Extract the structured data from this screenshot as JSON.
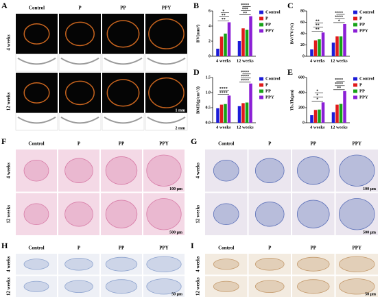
{
  "panels": {
    "A": {
      "label": "A",
      "columns": [
        "Control",
        "P",
        "PP",
        "PPY"
      ],
      "rows": [
        "4 weeks",
        "12 weeks"
      ],
      "scale_bars": [
        "1 mm",
        "2 mm"
      ]
    },
    "F": {
      "label": "F",
      "columns": [
        "Control",
        "P",
        "PP",
        "PPY"
      ],
      "rows": [
        "4 weeks",
        "12 weeks"
      ],
      "scale_bars": [
        "500 μm",
        "100 μm"
      ]
    },
    "G": {
      "label": "G",
      "columns": [
        "Control",
        "P",
        "PP",
        "PPY"
      ],
      "rows": [
        "4 weeks",
        "12 weeks"
      ],
      "scale_bars": [
        "500 μm",
        "100 μm"
      ]
    },
    "H": {
      "label": "H",
      "columns": [
        "Control",
        "P",
        "PP",
        "PPY"
      ],
      "rows": [
        "4 weeks",
        "12 weeks"
      ],
      "scale_bars": [
        "50 μm"
      ]
    },
    "I": {
      "label": "I",
      "columns": [
        "Control",
        "P",
        "PP",
        "PPY"
      ],
      "rows": [
        "4 weeks",
        "12 weeks"
      ],
      "scale_bars": [
        "50 μm"
      ]
    }
  },
  "chart_data": [
    {
      "type": "bar",
      "panel": "B",
      "ylabel": "BV(mm³)",
      "categories": [
        "4 weeks",
        "12 weeks"
      ],
      "series": [
        {
          "name": "Control",
          "color": "#1c1cd8",
          "values": [
            1.0,
            2.0
          ]
        },
        {
          "name": "P",
          "color": "#e01b1b",
          "values": [
            2.6,
            3.7
          ]
        },
        {
          "name": "PP",
          "color": "#17a317",
          "values": [
            3.0,
            3.5
          ]
        },
        {
          "name": "PPY",
          "color": "#8b1fd6",
          "values": [
            4.5,
            5.3
          ]
        }
      ],
      "annotations": [
        [
          "**",
          "**",
          "*"
        ],
        [
          "**",
          "***",
          "****"
        ]
      ],
      "ylim": [
        0,
        6
      ],
      "yticks": [
        0,
        2,
        4,
        6
      ]
    },
    {
      "type": "bar",
      "panel": "C",
      "ylabel": "BV/TV(%)",
      "categories": [
        "4 weeks",
        "12 weeks"
      ],
      "series": [
        {
          "name": "Control",
          "color": "#1c1cd8",
          "values": [
            12,
            24
          ]
        },
        {
          "name": "P",
          "color": "#e01b1b",
          "values": [
            28,
            35
          ]
        },
        {
          "name": "PP",
          "color": "#17a317",
          "values": [
            30,
            35
          ]
        },
        {
          "name": "PPY",
          "color": "#8b1fd6",
          "values": [
            42,
            57
          ]
        }
      ],
      "annotations": [
        [
          "**",
          "**",
          "**"
        ],
        [
          "*",
          "****",
          "****"
        ]
      ],
      "ylim": [
        0,
        80
      ],
      "yticks": [
        0,
        20,
        40,
        60,
        80
      ]
    },
    {
      "type": "bar",
      "panel": "D",
      "ylabel": "BMD(g/cm^3)",
      "categories": [
        "4 weeks",
        "12 weeks"
      ],
      "series": [
        {
          "name": "Control",
          "color": "#1c1cd8",
          "values": [
            0.48,
            0.55
          ]
        },
        {
          "name": "P",
          "color": "#e01b1b",
          "values": [
            0.6,
            0.65
          ]
        },
        {
          "name": "PP",
          "color": "#17a317",
          "values": [
            0.62,
            0.67
          ]
        },
        {
          "name": "PPY",
          "color": "#8b1fd6",
          "values": [
            0.9,
            1.3
          ]
        }
      ],
      "annotations": [
        [
          "****",
          "****"
        ],
        [
          "****",
          "****",
          "****"
        ]
      ],
      "ylim": [
        0,
        1.5
      ],
      "yticks": [
        {
          "value": 0,
          "label": "0.0"
        },
        0.5,
        {
          "value": 1,
          "label": "1.0"
        },
        1.5
      ]
    },
    {
      "type": "bar",
      "panel": "E",
      "ylabel": "Tb.Th(μm)",
      "categories": [
        "4 weeks",
        "12 weeks"
      ],
      "series": [
        {
          "name": "Control",
          "color": "#1c1cd8",
          "values": [
            100,
            140
          ]
        },
        {
          "name": "P",
          "color": "#e01b1b",
          "values": [
            170,
            240
          ]
        },
        {
          "name": "PP",
          "color": "#17a317",
          "values": [
            175,
            250
          ]
        },
        {
          "name": "PPY",
          "color": "#8b1fd6",
          "values": [
            270,
            420
          ]
        }
      ],
      "annotations": [
        [
          "*",
          "*",
          "*"
        ],
        [
          "**",
          "****",
          "****"
        ]
      ],
      "ylim": [
        0,
        600
      ],
      "yticks": [
        0,
        200,
        400,
        600
      ]
    }
  ]
}
